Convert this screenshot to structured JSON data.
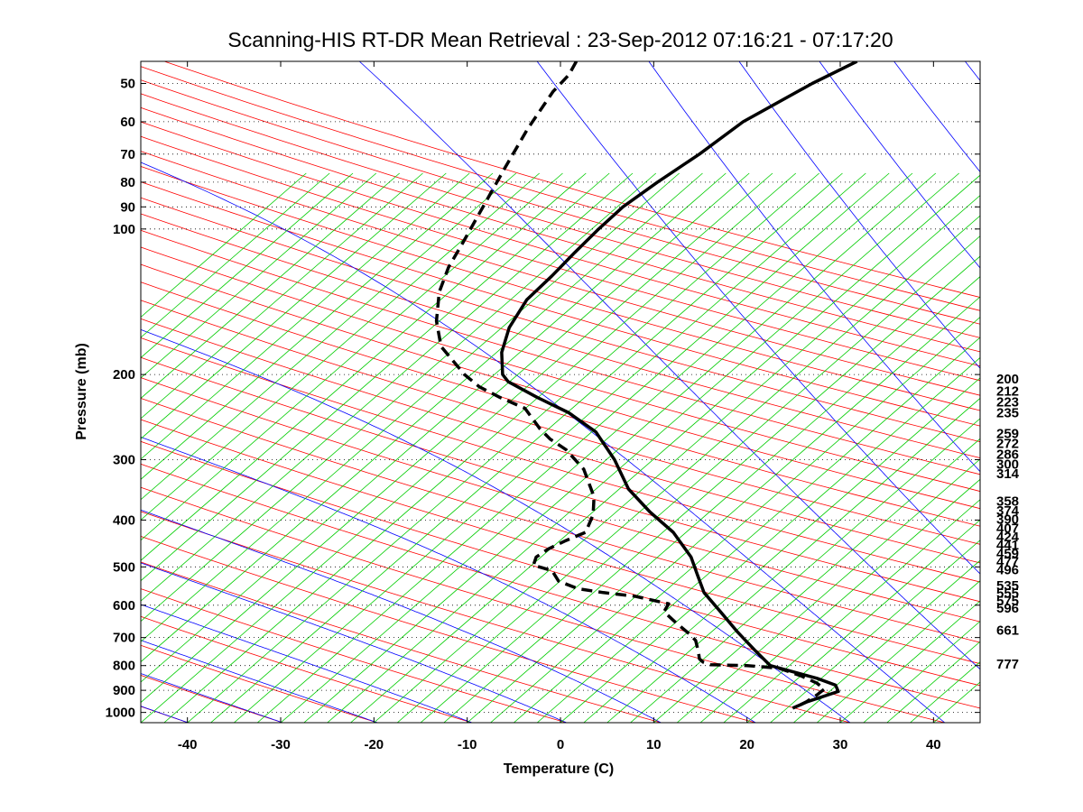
{
  "chart_data": {
    "type": "line",
    "title": "Scanning-HIS RT-DR Mean Retrieval : 23-Sep-2012 07:16:21 - 07:17:20",
    "xlabel": "Temperature (C)",
    "ylabel": "Pressure (mb)",
    "xlim": [
      -45,
      45
    ],
    "ylim": [
      1050,
      45
    ],
    "y_scale": "log",
    "grid": "dotted-horizontal",
    "x_ticks": [
      {
        "value": -40,
        "label": "-40"
      },
      {
        "value": -30,
        "label": "-30"
      },
      {
        "value": -20,
        "label": "-20"
      },
      {
        "value": -10,
        "label": "-10"
      },
      {
        "value": 0,
        "label": "0"
      },
      {
        "value": 10,
        "label": "10"
      },
      {
        "value": 20,
        "label": "20"
      },
      {
        "value": 30,
        "label": "30"
      },
      {
        "value": 40,
        "label": "40"
      }
    ],
    "y_ticks": [
      {
        "value": 50,
        "label": "50"
      },
      {
        "value": 60,
        "label": "60"
      },
      {
        "value": 70,
        "label": "70"
      },
      {
        "value": 80,
        "label": "80"
      },
      {
        "value": 90,
        "label": "90"
      },
      {
        "value": 100,
        "label": "100"
      },
      {
        "value": 200,
        "label": "200"
      },
      {
        "value": 300,
        "label": "300"
      },
      {
        "value": 400,
        "label": "400"
      },
      {
        "value": 500,
        "label": "500"
      },
      {
        "value": 600,
        "label": "600"
      },
      {
        "value": 700,
        "label": "700"
      },
      {
        "value": 800,
        "label": "800"
      },
      {
        "value": 900,
        "label": "900"
      },
      {
        "value": 1000,
        "label": "1000"
      }
    ],
    "right_labels": [
      {
        "value": 200,
        "label": "200"
      },
      {
        "value": 212,
        "label": "212"
      },
      {
        "value": 223,
        "label": "223"
      },
      {
        "value": 235,
        "label": "235"
      },
      {
        "value": 259,
        "label": "259"
      },
      {
        "value": 272,
        "label": "272"
      },
      {
        "value": 286,
        "label": "286"
      },
      {
        "value": 300,
        "label": "300"
      },
      {
        "value": 314,
        "label": "314"
      },
      {
        "value": 358,
        "label": "358"
      },
      {
        "value": 374,
        "label": "374"
      },
      {
        "value": 390,
        "label": "390"
      },
      {
        "value": 407,
        "label": "407"
      },
      {
        "value": 424,
        "label": "424"
      },
      {
        "value": 441,
        "label": "441"
      },
      {
        "value": 459,
        "label": "459"
      },
      {
        "value": 477,
        "label": "477"
      },
      {
        "value": 496,
        "label": "496"
      },
      {
        "value": 535,
        "label": "535"
      },
      {
        "value": 555,
        "label": "555"
      },
      {
        "value": 575,
        "label": "575"
      },
      {
        "value": 596,
        "label": "596"
      },
      {
        "value": 661,
        "label": "661"
      },
      {
        "value": 777,
        "label": "777"
      }
    ],
    "colors": {
      "dry_adiabats": "#ff0000",
      "moist_adiabats": "#0000ff",
      "mixing_ratio": "#00cc00",
      "profile": "#000000",
      "grid": "#000000"
    },
    "series": [
      {
        "style": "solid",
        "x": [
          31.8,
          27.0,
          19.6,
          14.9,
          10.4,
          6.7,
          4.1,
          1.5,
          -0.9,
          -3.6,
          -5.5,
          -6.3,
          -6.2,
          -5.6,
          -2.5,
          0.9,
          3.8,
          5.8,
          7.3,
          9.6,
          12.1,
          14.0,
          14.7,
          15.4,
          17.1,
          19.0,
          20.8,
          22.5,
          27.5,
          29.5,
          29.8,
          26.5,
          24.9
        ],
        "y": [
          45,
          50,
          60,
          70,
          80,
          90,
          100,
          112,
          125,
          140,
          160,
          180,
          200,
          207,
          223,
          240,
          263,
          300,
          345,
          385,
          424,
          477,
          520,
          565,
          617,
          682,
          742,
          800,
          850,
          878,
          905,
          950,
          980
        ]
      },
      {
        "style": "dashed",
        "x": [
          1.7,
          0.9,
          -0.8,
          -3.5,
          -6.0,
          -8.3,
          -10.5,
          -12.0,
          -13.0,
          -13.3,
          -12.8,
          -10.3,
          -8.7,
          -6.5,
          -3.8,
          -2.2,
          -1.1,
          0.6,
          2.5,
          3.6,
          3.5,
          2.7,
          0.6,
          -1.3,
          -2.6,
          -2.9,
          -0.9,
          -0.2,
          1.9,
          4.6,
          8.0,
          11.6,
          11.1,
          12.3,
          13.9,
          14.5,
          14.8,
          14.9,
          15.3,
          16.1,
          20.0,
          23.4,
          25.8,
          27.5,
          28.3,
          27.5,
          26.4,
          25.2
        ],
        "y": [
          45,
          48,
          52,
          62,
          75,
          90,
          107,
          120,
          135,
          155,
          175,
          200,
          212,
          223,
          235,
          259,
          272,
          286,
          314,
          358,
          390,
          424,
          441,
          459,
          477,
          496,
          509,
          535,
          555,
          565,
          575,
          596,
          619,
          650,
          690,
          710,
          750,
          775,
          787,
          797,
          800,
          810,
          840,
          870,
          895,
          920,
          950,
          975
        ]
      }
    ]
  }
}
